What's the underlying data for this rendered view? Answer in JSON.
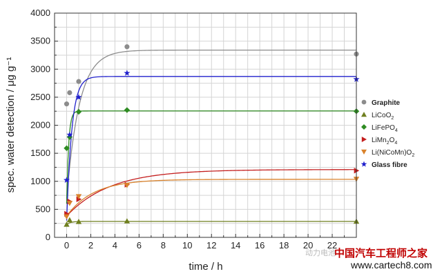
{
  "chart_data": {
    "type": "scatter",
    "xlabel": "time / h",
    "ylabel": "spec. water detection / μg g⁻¹",
    "xlim": [
      -1,
      24
    ],
    "ylim": [
      0,
      4000
    ],
    "xticks": [
      0,
      2,
      4,
      6,
      8,
      10,
      12,
      14,
      16,
      18,
      20,
      22
    ],
    "yticks": [
      0,
      500,
      1000,
      1500,
      2000,
      2500,
      3000,
      3500,
      4000
    ],
    "grid": true,
    "legend_position": "right",
    "series": [
      {
        "name": "Graphite",
        "sub": "",
        "color": "#8c8c8c",
        "marker": "circle",
        "x": [
          0,
          0.25,
          1,
          5,
          24
        ],
        "y": [
          2380,
          2580,
          2780,
          3400,
          3270
        ]
      },
      {
        "name": "LiCoO",
        "sub": "2",
        "color": "#6f7f1f",
        "marker": "triangle-up",
        "x": [
          0,
          0.25,
          1,
          5,
          24
        ],
        "y": [
          230,
          310,
          280,
          290,
          285
        ]
      },
      {
        "name": "LiFePO",
        "sub": "4",
        "color": "#2e8b22",
        "marker": "diamond",
        "x": [
          0,
          0.25,
          1,
          5,
          24
        ],
        "y": [
          1590,
          1790,
          2240,
          2270,
          2250
        ]
      },
      {
        "name": "LiMn",
        "sub": "2",
        "name2": "O",
        "sub2": "4",
        "color": "#c41e1e",
        "marker": "triangle-right",
        "x": [
          0,
          0.25,
          1,
          5,
          24
        ],
        "y": [
          420,
          640,
          680,
          940,
          1190
        ]
      },
      {
        "name": "Li(NiCoMn)O",
        "sub": "2",
        "color": "#d9822b",
        "marker": "triangle-down",
        "x": [
          0,
          0.25,
          1,
          5,
          24
        ],
        "y": [
          370,
          610,
          730,
          930,
          1040
        ]
      },
      {
        "name": "Glass fibre",
        "sub": "",
        "color": "#2020cc",
        "marker": "star",
        "x": [
          0,
          0.25,
          1,
          5,
          24
        ],
        "y": [
          1020,
          1830,
          2500,
          2930,
          2820
        ]
      }
    ],
    "fits": [
      {
        "color": "#8c8c8c",
        "plateau": 3340,
        "start": 700,
        "rate": 0.95
      },
      {
        "color": "#6f7f1f",
        "plateau": 285,
        "start": 230,
        "rate": 3.0
      },
      {
        "color": "#2e8b22",
        "plateau": 2255,
        "start": 600,
        "rate": 6.0
      },
      {
        "color": "#2020cc",
        "plateau": 2870,
        "start": 300,
        "rate": 2.3
      },
      {
        "color": "#c41e1e",
        "plateau": 1210,
        "start": 380,
        "rate": 0.28
      },
      {
        "color": "#d9822b",
        "plateau": 1035,
        "start": 380,
        "rate": 0.45
      }
    ]
  },
  "watermark": {
    "cn": "中国汽车工程师之家",
    "url": "www.cartech8.com",
    "faint": "动力电池"
  }
}
